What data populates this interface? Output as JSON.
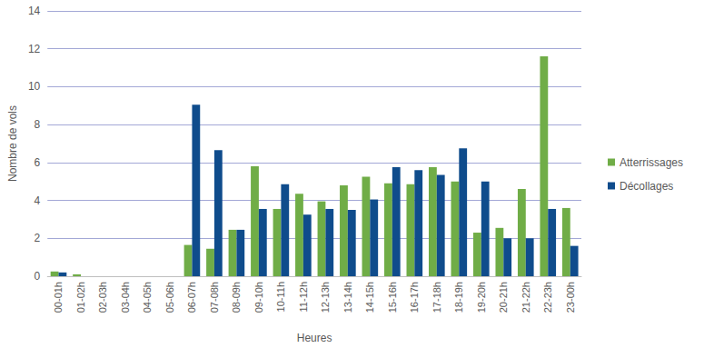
{
  "chart_data": {
    "type": "bar",
    "x_label": "Heures",
    "y_label": "Nombre de vols",
    "categories": [
      "00-01h",
      "01-02h",
      "02-03h",
      "03-04h",
      "04-05h",
      "05-06h",
      "06-07h",
      "07-08h",
      "08-09h",
      "09-10h",
      "10-11h",
      "11-12h",
      "12-13h",
      "13-14h",
      "14-15h",
      "15-16h",
      "16-17h",
      "17-18h",
      "18-19h",
      "19-20h",
      "20-21h",
      "21-22h",
      "22-23h",
      "23-00h"
    ],
    "series": [
      {
        "name": "Atterrissages",
        "color": "#70ad47",
        "values": [
          0.25,
          0.1,
          0,
          0,
          0,
          0,
          1.65,
          1.45,
          2.45,
          5.8,
          3.55,
          4.35,
          3.95,
          4.8,
          5.25,
          4.9,
          4.85,
          5.75,
          5.0,
          2.3,
          2.55,
          4.6,
          11.6,
          3.6
        ]
      },
      {
        "name": "Décollages",
        "color": "#0f4c8c",
        "values": [
          0.2,
          0,
          0,
          0,
          0,
          0,
          9.05,
          6.65,
          2.45,
          3.55,
          4.85,
          3.25,
          3.55,
          3.5,
          4.05,
          5.75,
          5.6,
          5.35,
          6.75,
          5.0,
          2.0,
          2.0,
          3.55,
          1.6
        ]
      }
    ],
    "ylim": [
      0,
      14
    ],
    "yticks": [
      0,
      2,
      4,
      6,
      8,
      10,
      12,
      14
    ],
    "grid": true,
    "legend": "right"
  }
}
